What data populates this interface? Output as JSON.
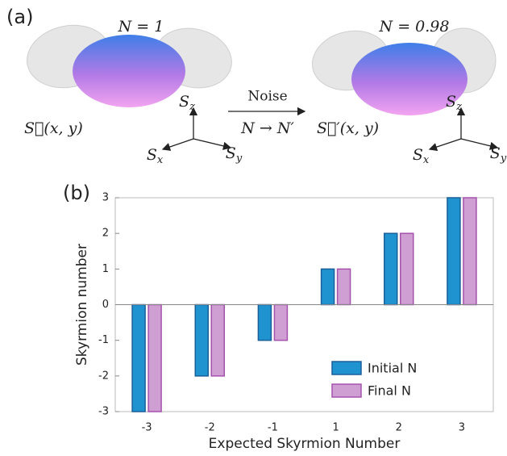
{
  "panel_a": {
    "label": "(a)",
    "left": {
      "n_label": "N = 1",
      "field": "S⃗(x, y)",
      "axes": [
        {
          "symbol": "S",
          "subscript": "z"
        },
        {
          "symbol": "S",
          "subscript": "x"
        },
        {
          "symbol": "S",
          "subscript": "y"
        }
      ]
    },
    "arrow": {
      "top": "Noise",
      "bottom": "N → N′"
    },
    "right": {
      "n_label": "N = 0.98",
      "field": "S⃗′(x, y)",
      "axes": [
        {
          "symbol": "S",
          "subscript": "z"
        },
        {
          "symbol": "S",
          "subscript": "x"
        },
        {
          "symbol": "S",
          "subscript": "y"
        }
      ]
    }
  },
  "chart_data": {
    "type": "bar",
    "panel_label": "(b)",
    "xlabel": "Expected Skyrmion Number",
    "ylabel": "Skyrmion number",
    "categories": [
      "-3",
      "-2",
      "-1",
      "1",
      "2",
      "3"
    ],
    "series": [
      {
        "name": "Initial N",
        "color": "#1f93cf",
        "edge": "#1a5f9a",
        "values": [
          -3,
          -2,
          -1,
          1,
          2,
          3
        ]
      },
      {
        "name": "Final N",
        "color": "#cf9fd3",
        "edge": "#a552ad",
        "values": [
          -3,
          -2,
          -1,
          1,
          2,
          3
        ]
      }
    ],
    "ylim": [
      -3,
      3
    ],
    "yticks": [
      -3,
      -2,
      -1,
      0,
      1,
      2,
      3
    ],
    "legend": "lower right"
  }
}
